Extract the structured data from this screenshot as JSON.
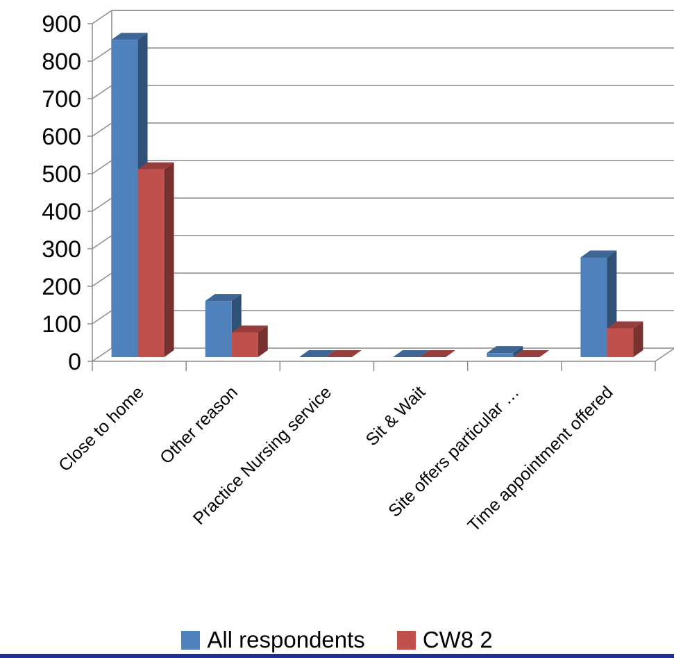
{
  "chart_data": {
    "type": "bar",
    "title": "",
    "xlabel": "",
    "ylabel": "",
    "ylim": [
      0,
      900
    ],
    "yticks": [
      "0",
      "100",
      "200",
      "300",
      "400",
      "500",
      "600",
      "700",
      "800",
      "900"
    ],
    "categories": [
      "Close to home",
      "Other reason",
      "Practice Nursing service",
      "Sit & Wait",
      "Site offers particular …",
      "Time appointment offered"
    ],
    "series": [
      {
        "name": "All respondents",
        "color": "#4f81bd",
        "values": [
          868,
          172,
          22,
          12,
          33,
          288
        ]
      },
      {
        "name": "CW8 2",
        "color": "#c0504d",
        "values": [
          523,
          88,
          5,
          4,
          16,
          99
        ]
      }
    ],
    "grid": true,
    "legend_position": "bottom",
    "style": "3d-clustered-column"
  }
}
